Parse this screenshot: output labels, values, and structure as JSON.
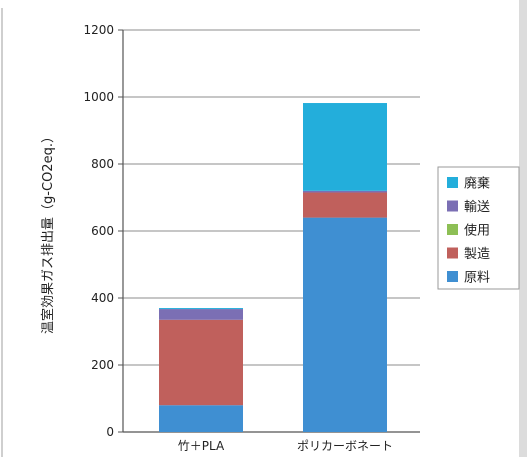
{
  "chart_data": {
    "type": "bar",
    "stacked": true,
    "categories": [
      "竹＋PLA",
      "ポリカーボネート"
    ],
    "series": [
      {
        "name": "原料",
        "color": "#3f8fd2",
        "values": [
          80,
          640
        ]
      },
      {
        "name": "製造",
        "color": "#c0605c",
        "values": [
          255,
          75
        ]
      },
      {
        "name": "使用",
        "color": "#8dbf55",
        "values": [
          0,
          0
        ]
      },
      {
        "name": "輸送",
        "color": "#7b6fb4",
        "values": [
          32,
          5
        ]
      },
      {
        "name": "廃棄",
        "color": "#23aedb",
        "values": [
          3,
          262
        ]
      }
    ],
    "title": "",
    "xlabel": "",
    "ylabel": "温室効果ガス排出量（g-CO2eq.）",
    "ylim": [
      0,
      1200
    ],
    "yticks": [
      0,
      200,
      400,
      600,
      800,
      1000,
      1200
    ],
    "grid": true,
    "legend_position": "right",
    "legend_order": [
      "廃棄",
      "輸送",
      "使用",
      "製造",
      "原料"
    ]
  }
}
